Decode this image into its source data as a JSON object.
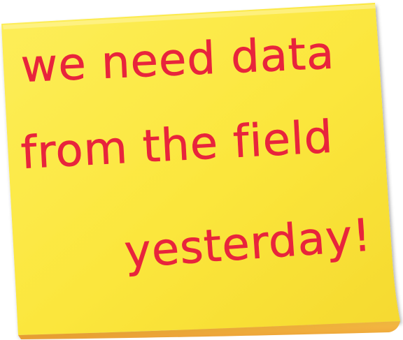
{
  "note": {
    "lines": [
      "we need data",
      "from the field",
      "yesterday!"
    ],
    "paper_color": "#fbe63c",
    "ink_color": "#e8243c"
  }
}
